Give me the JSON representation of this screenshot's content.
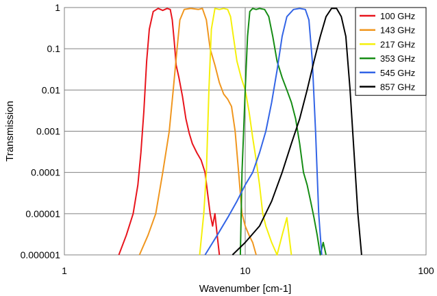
{
  "chart_data": {
    "type": "line",
    "x_scale": "log",
    "y_scale": "log",
    "xlabel": "Wavenumber [cm-1]",
    "ylabel": "Transmission",
    "xlim": [
      1,
      100
    ],
    "ylim": [
      1e-06,
      1
    ],
    "x_ticks": [
      "1",
      "10",
      "100"
    ],
    "y_ticks": [
      "0.000001",
      "0.00001",
      "0.0001",
      "0.001",
      "0.01",
      "0.1",
      "1"
    ],
    "grid": true,
    "legend_position": "top-right",
    "series": [
      {
        "name": "100 GHz",
        "color": "#e8141c",
        "points": [
          [
            2.0,
            1e-06
          ],
          [
            2.2,
            3e-06
          ],
          [
            2.4,
            1e-05
          ],
          [
            2.55,
            5e-05
          ],
          [
            2.65,
            0.0003
          ],
          [
            2.75,
            0.003
          ],
          [
            2.85,
            0.05
          ],
          [
            2.95,
            0.3
          ],
          [
            3.1,
            0.8
          ],
          [
            3.3,
            0.95
          ],
          [
            3.5,
            0.85
          ],
          [
            3.7,
            0.95
          ],
          [
            3.85,
            0.9
          ],
          [
            3.95,
            0.5
          ],
          [
            4.05,
            0.15
          ],
          [
            4.15,
            0.04
          ],
          [
            4.3,
            0.02
          ],
          [
            4.5,
            0.007
          ],
          [
            4.7,
            0.002
          ],
          [
            4.9,
            0.0009
          ],
          [
            5.1,
            0.0005
          ],
          [
            5.4,
            0.0003
          ],
          [
            5.7,
            0.0002
          ],
          [
            6.0,
            0.0001
          ],
          [
            6.2,
            3e-05
          ],
          [
            6.4,
            1e-05
          ],
          [
            6.6,
            5e-06
          ],
          [
            6.8,
            1e-05
          ],
          [
            7.0,
            3e-06
          ],
          [
            7.2,
            1e-06
          ]
        ]
      },
      {
        "name": "143 GHz",
        "color": "#f0961e",
        "points": [
          [
            2.6,
            1e-06
          ],
          [
            2.9,
            3e-06
          ],
          [
            3.2,
            1e-05
          ],
          [
            3.5,
            0.0001
          ],
          [
            3.8,
            0.001
          ],
          [
            4.0,
            0.01
          ],
          [
            4.2,
            0.1
          ],
          [
            4.35,
            0.5
          ],
          [
            4.6,
            0.9
          ],
          [
            5.0,
            0.95
          ],
          [
            5.5,
            0.9
          ],
          [
            5.8,
            0.95
          ],
          [
            6.1,
            0.5
          ],
          [
            6.4,
            0.1
          ],
          [
            6.8,
            0.04
          ],
          [
            7.2,
            0.015
          ],
          [
            7.6,
            0.008
          ],
          [
            8.0,
            0.006
          ],
          [
            8.4,
            0.004
          ],
          [
            8.8,
            0.001
          ],
          [
            9.2,
            0.0001
          ],
          [
            9.6,
            1e-05
          ],
          [
            10.0,
            5e-06
          ],
          [
            10.5,
            3e-06
          ],
          [
            11.0,
            2e-06
          ],
          [
            11.5,
            1e-06
          ]
        ]
      },
      {
        "name": "217 GHz",
        "color": "#f5f00a",
        "points": [
          [
            5.6,
            1e-06
          ],
          [
            5.9,
            1e-05
          ],
          [
            6.1,
            0.0001
          ],
          [
            6.3,
            0.01
          ],
          [
            6.5,
            0.3
          ],
          [
            6.8,
            0.95
          ],
          [
            7.2,
            0.9
          ],
          [
            7.6,
            0.95
          ],
          [
            8.0,
            0.9
          ],
          [
            8.3,
            0.6
          ],
          [
            8.6,
            0.2
          ],
          [
            9.0,
            0.05
          ],
          [
            9.5,
            0.02
          ],
          [
            10.0,
            0.01
          ],
          [
            10.5,
            0.003
          ],
          [
            11.0,
            0.0007
          ],
          [
            11.5,
            0.0002
          ],
          [
            12.0,
            5e-05
          ],
          [
            12.5,
            1e-05
          ],
          [
            13.0,
            5e-06
          ],
          [
            14.0,
            2e-06
          ],
          [
            15.0,
            1e-06
          ],
          [
            16.0,
            3e-06
          ],
          [
            17.0,
            8e-06
          ],
          [
            18.0,
            1e-06
          ]
        ]
      },
      {
        "name": "353 GHz",
        "color": "#158c14",
        "points": [
          [
            9.4,
            1e-06
          ],
          [
            9.6,
            0.0001
          ],
          [
            9.8,
            0.001
          ],
          [
            10.0,
            0.01
          ],
          [
            10.3,
            0.2
          ],
          [
            10.6,
            0.8
          ],
          [
            11.0,
            0.95
          ],
          [
            11.5,
            0.9
          ],
          [
            12.0,
            0.95
          ],
          [
            12.8,
            0.9
          ],
          [
            13.5,
            0.6
          ],
          [
            14.2,
            0.2
          ],
          [
            15.0,
            0.05
          ],
          [
            16.0,
            0.02
          ],
          [
            17.0,
            0.01
          ],
          [
            18.0,
            0.005
          ],
          [
            19.0,
            0.002
          ],
          [
            20.0,
            0.0005
          ],
          [
            21.0,
            0.0001
          ],
          [
            22.0,
            5e-05
          ],
          [
            23.0,
            2e-05
          ],
          [
            24.0,
            8e-06
          ],
          [
            25.0,
            3e-06
          ],
          [
            26.0,
            1e-06
          ],
          [
            27.0,
            2e-06
          ],
          [
            28.0,
            1e-06
          ]
        ]
      },
      {
        "name": "545 GHz",
        "color": "#3264e6",
        "points": [
          [
            6.0,
            1e-06
          ],
          [
            7.0,
            3e-06
          ],
          [
            8.0,
            8e-06
          ],
          [
            9.0,
            2e-05
          ],
          [
            10.0,
            5e-05
          ],
          [
            11.0,
            0.0001
          ],
          [
            12.0,
            0.0003
          ],
          [
            13.0,
            0.001
          ],
          [
            14.0,
            0.005
          ],
          [
            15.0,
            0.03
          ],
          [
            16.0,
            0.2
          ],
          [
            17.0,
            0.6
          ],
          [
            18.5,
            0.9
          ],
          [
            20.0,
            0.95
          ],
          [
            21.5,
            0.9
          ],
          [
            22.5,
            0.5
          ],
          [
            23.5,
            0.05
          ],
          [
            24.5,
            0.001
          ],
          [
            25.5,
            1e-05
          ],
          [
            26.5,
            1e-06
          ]
        ]
      },
      {
        "name": "857 GHz",
        "color": "#000000",
        "points": [
          [
            8.5,
            1e-06
          ],
          [
            10.0,
            2e-06
          ],
          [
            12.0,
            5e-06
          ],
          [
            14.0,
            2e-05
          ],
          [
            16.0,
            0.0001
          ],
          [
            18.0,
            0.0005
          ],
          [
            20.0,
            0.002
          ],
          [
            22.0,
            0.01
          ],
          [
            24.0,
            0.05
          ],
          [
            26.0,
            0.2
          ],
          [
            28.0,
            0.6
          ],
          [
            30.0,
            0.95
          ],
          [
            32.0,
            0.95
          ],
          [
            34.0,
            0.6
          ],
          [
            36.0,
            0.2
          ],
          [
            38.0,
            0.01
          ],
          [
            40.0,
            0.0003
          ],
          [
            42.0,
            1e-05
          ],
          [
            44.0,
            1e-06
          ]
        ]
      }
    ]
  }
}
